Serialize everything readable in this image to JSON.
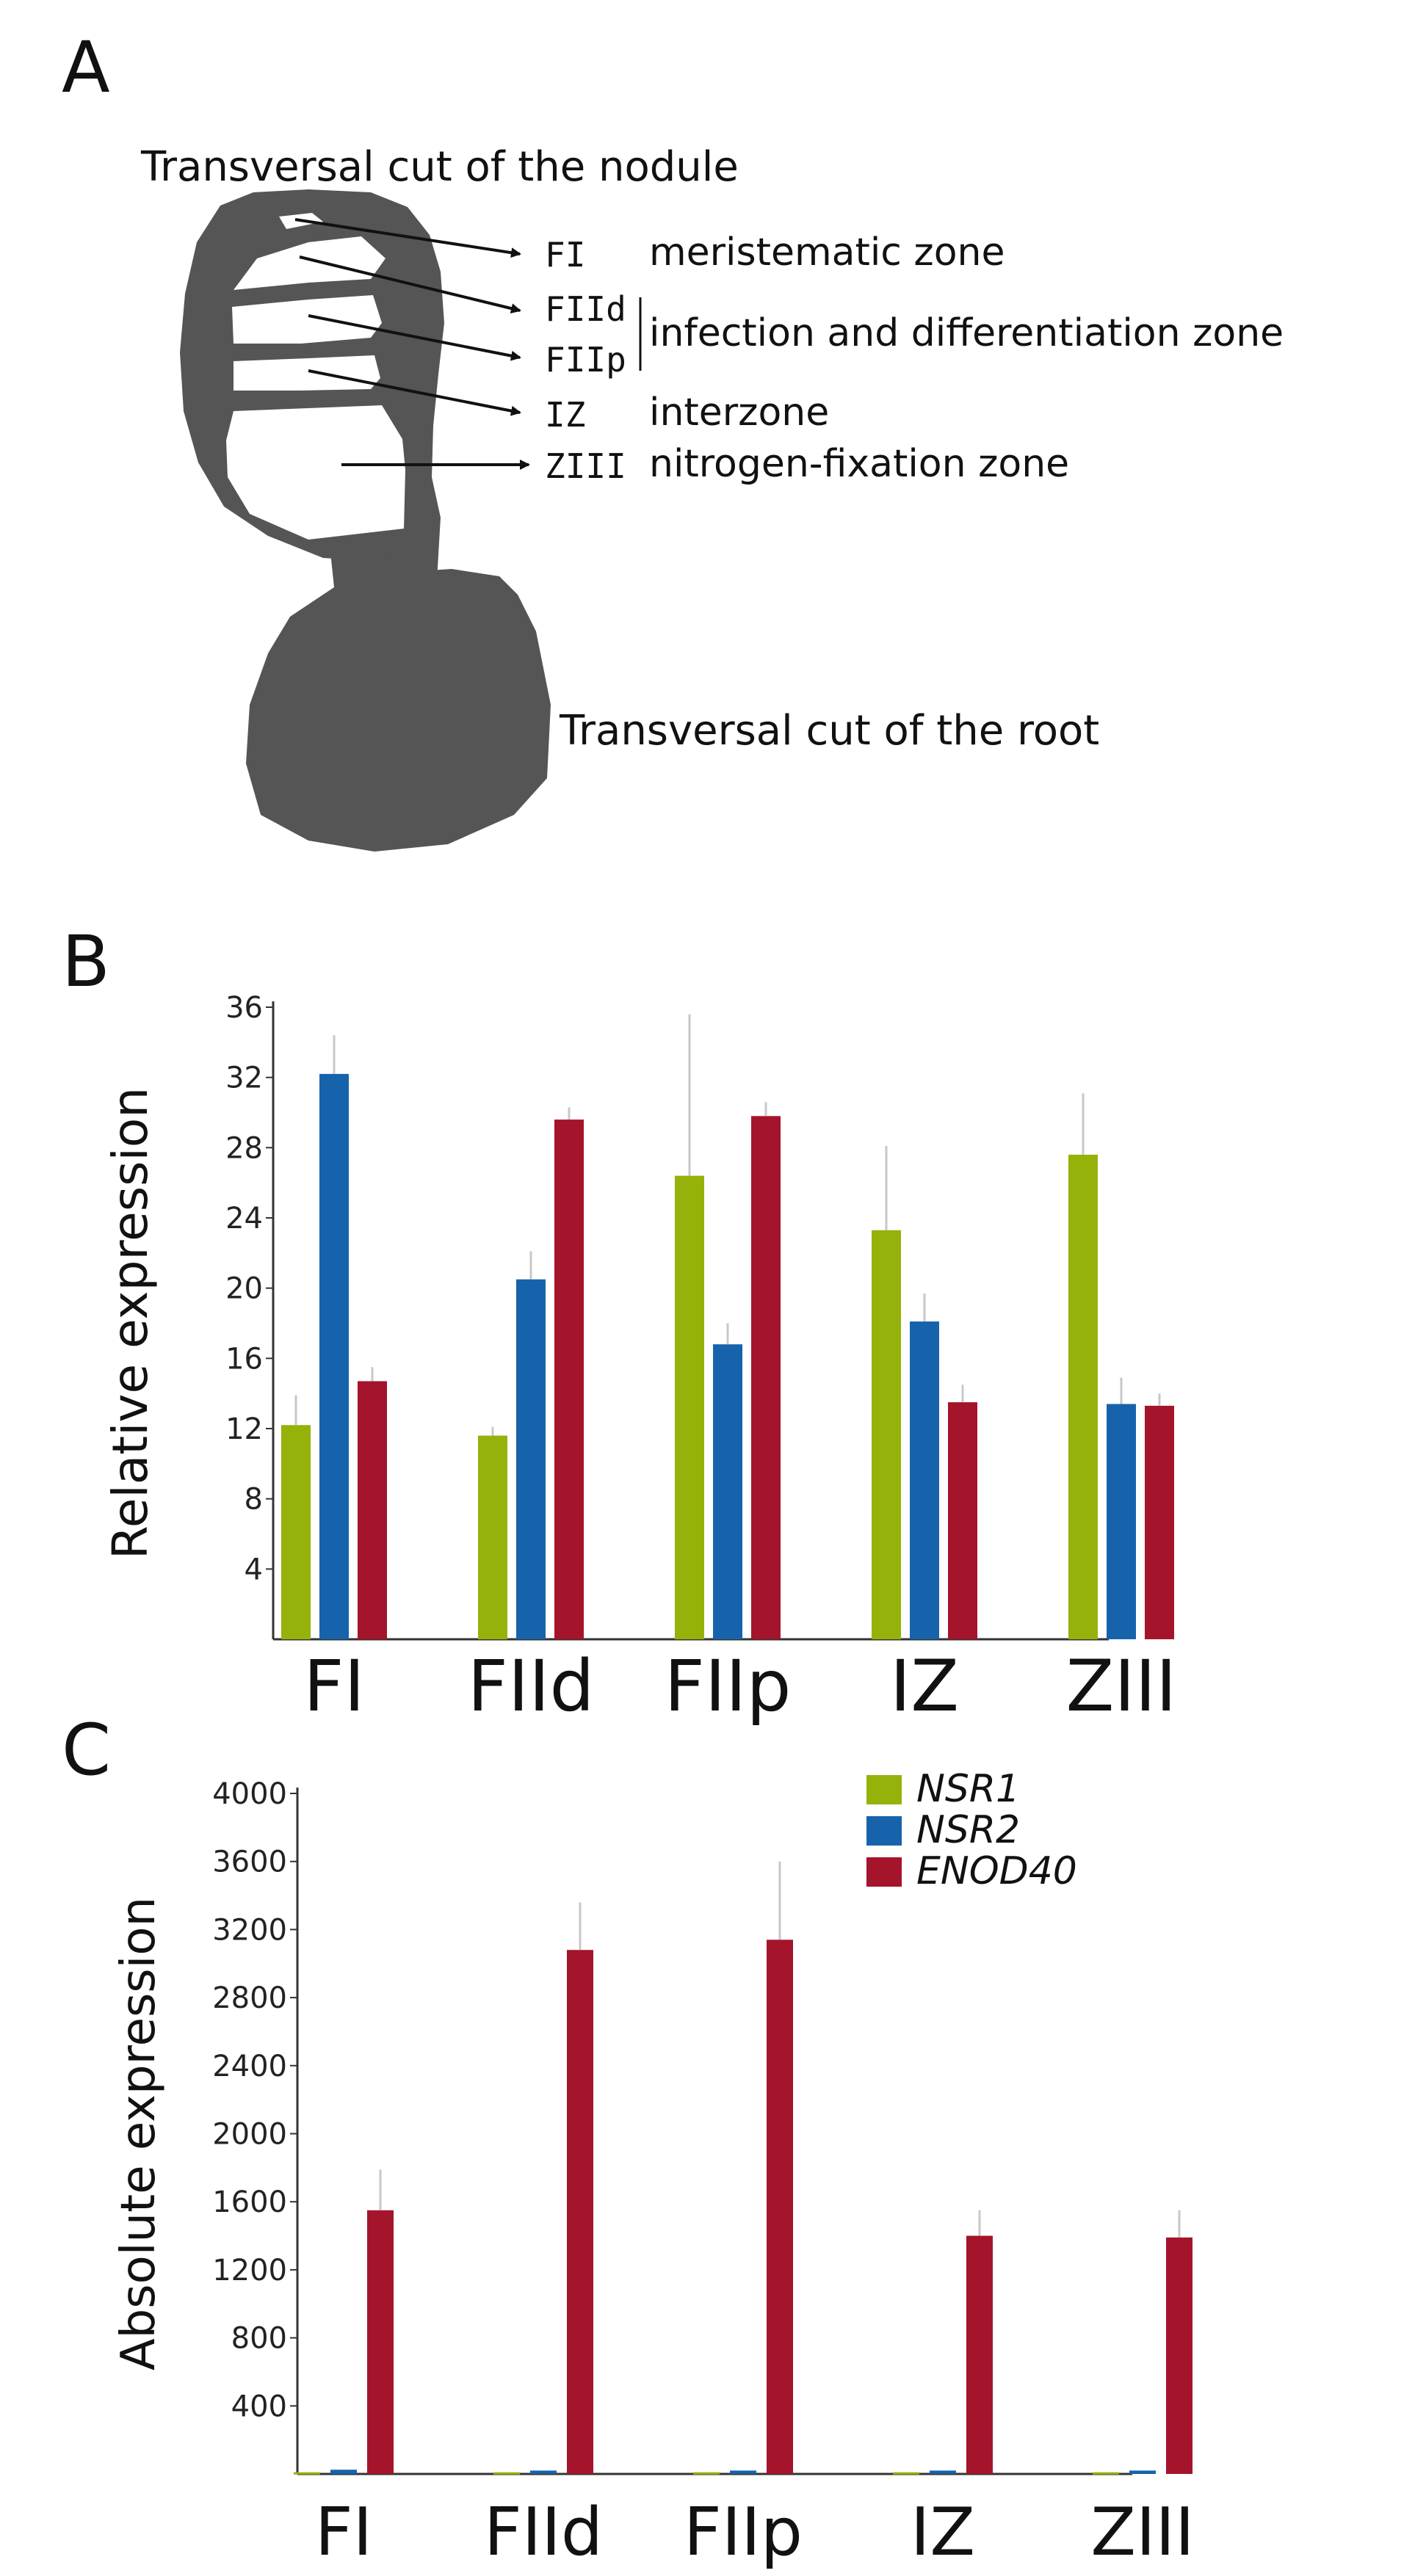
{
  "panel_a": {
    "letter": "A",
    "nodule_label": "Transversal cut of the nodule",
    "root_label": "Transversal cut of the root",
    "zones": [
      {
        "code": "FI",
        "description": "meristematic zone"
      },
      {
        "code": "FIId",
        "description": ""
      },
      {
        "code": "FIIp",
        "description": ""
      },
      {
        "code": "IZ",
        "description": "interzone"
      },
      {
        "code": "ZIII",
        "description": "nitrogen-fixation zone"
      }
    ],
    "bracket_description": "infection and differentiation zone"
  },
  "colors": {
    "NSR1": "#94b20a",
    "NSR2": "#1763ab",
    "ENOD40": "#a4142a",
    "tissue": "#555555",
    "errorbar": "#c8c8c8"
  },
  "chart_data": [
    {
      "panel": "B",
      "type": "bar",
      "title": "",
      "xlabel": "",
      "ylabel": "Relative expression",
      "ylim": [
        0,
        36
      ],
      "yticks": [
        4,
        8,
        12,
        16,
        20,
        24,
        28,
        32,
        36
      ],
      "categories": [
        "FI",
        "FIId",
        "FIIp",
        "IZ",
        "ZIII"
      ],
      "series": [
        {
          "name": "NSR1",
          "color": "#94b20a",
          "values": [
            12.2,
            11.6,
            26.4,
            23.3,
            27.6
          ],
          "errors": [
            1.7,
            0.5,
            9.2,
            4.8,
            3.5
          ]
        },
        {
          "name": "NSR2",
          "color": "#1763ab",
          "values": [
            32.2,
            20.5,
            16.8,
            18.1,
            13.4
          ],
          "errors": [
            2.2,
            1.6,
            1.2,
            1.6,
            1.5
          ]
        },
        {
          "name": "ENOD40",
          "color": "#a4142a",
          "values": [
            14.7,
            29.6,
            29.8,
            13.5,
            13.3
          ],
          "errors": [
            0.8,
            0.7,
            0.8,
            1.0,
            0.7
          ]
        }
      ]
    },
    {
      "panel": "C",
      "type": "bar",
      "title": "",
      "xlabel": "",
      "ylabel": "Absolute expression",
      "ylim": [
        0,
        4000
      ],
      "yticks": [
        400,
        800,
        1200,
        1600,
        2000,
        2400,
        2800,
        3200,
        3600,
        4000
      ],
      "categories": [
        "FI",
        "FIId",
        "FIIp",
        "IZ",
        "ZIII"
      ],
      "legend": {
        "position": "top-right",
        "entries": [
          "NSR1",
          "NSR2",
          "ENOD40"
        ]
      },
      "series": [
        {
          "name": "NSR1",
          "color": "#94b20a",
          "values": [
            10,
            10,
            10,
            10,
            10
          ],
          "errors": [
            0,
            0,
            0,
            0,
            0
          ]
        },
        {
          "name": "NSR2",
          "color": "#1763ab",
          "values": [
            25,
            20,
            20,
            20,
            20
          ],
          "errors": [
            0,
            0,
            0,
            0,
            0
          ]
        },
        {
          "name": "ENOD40",
          "color": "#a4142a",
          "values": [
            1550,
            3080,
            3140,
            1400,
            1390
          ],
          "errors": [
            240,
            280,
            460,
            150,
            160
          ]
        }
      ]
    }
  ]
}
